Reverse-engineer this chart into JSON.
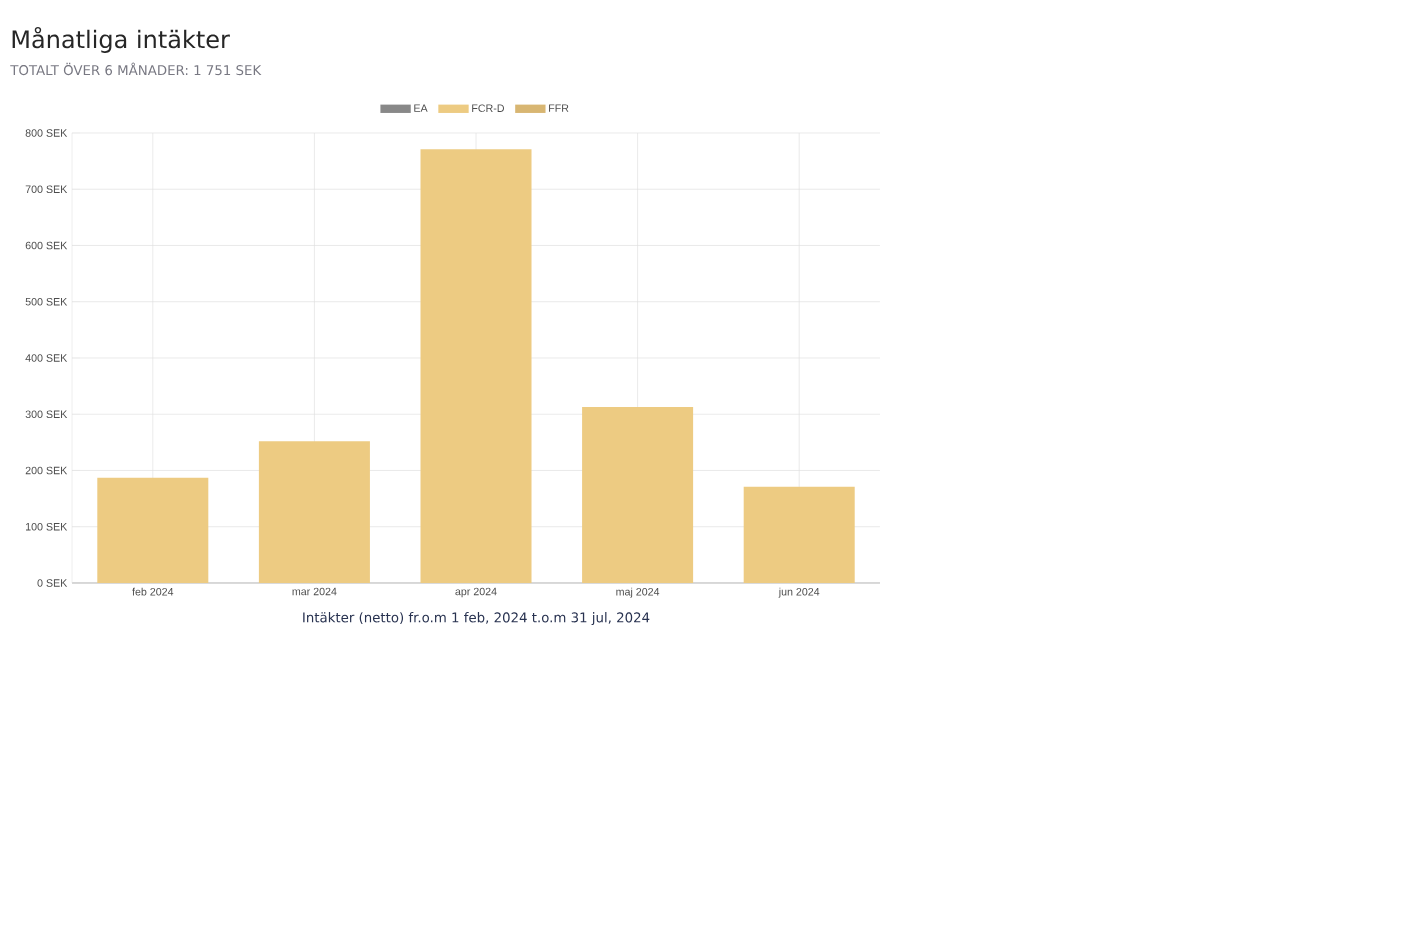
{
  "chart_data": {
    "type": "bar",
    "title": "Månatliga intäkter",
    "subtitle": "TOTALT ÖVER 6 MÅNADER: 1 751 SEK",
    "xlabel": "Intäkter (netto) fr.o.m 1 feb, 2024 t.o.m 31 jul, 2024",
    "categories": [
      "feb 2024",
      "mar 2024",
      "apr 2024",
      "maj 2024",
      "jun 2024"
    ],
    "stacked": true,
    "series": [
      {
        "name": "EA",
        "color": "#888888",
        "values": [
          0,
          0,
          0,
          0,
          0
        ]
      },
      {
        "name": "FCR-D",
        "color": "#edcb82",
        "values": [
          187,
          252,
          771,
          313,
          171
        ]
      },
      {
        "name": "FFR",
        "color": "#d8b672",
        "values": [
          0,
          0,
          0,
          0,
          0
        ]
      }
    ],
    "ylim": [
      0,
      800
    ],
    "yticks": [
      {
        "value": 0,
        "label": "0 SEK"
      },
      {
        "value": 100,
        "label": "100 SEK"
      },
      {
        "value": 200,
        "label": "200 SEK"
      },
      {
        "value": 300,
        "label": "300 SEK"
      },
      {
        "value": 400,
        "label": "400 SEK"
      },
      {
        "value": 500,
        "label": "500 SEK"
      },
      {
        "value": 600,
        "label": "600 SEK"
      },
      {
        "value": 700,
        "label": "700 SEK"
      },
      {
        "value": 800,
        "label": "800 SEK"
      }
    ],
    "grid": true,
    "legend": "top"
  }
}
